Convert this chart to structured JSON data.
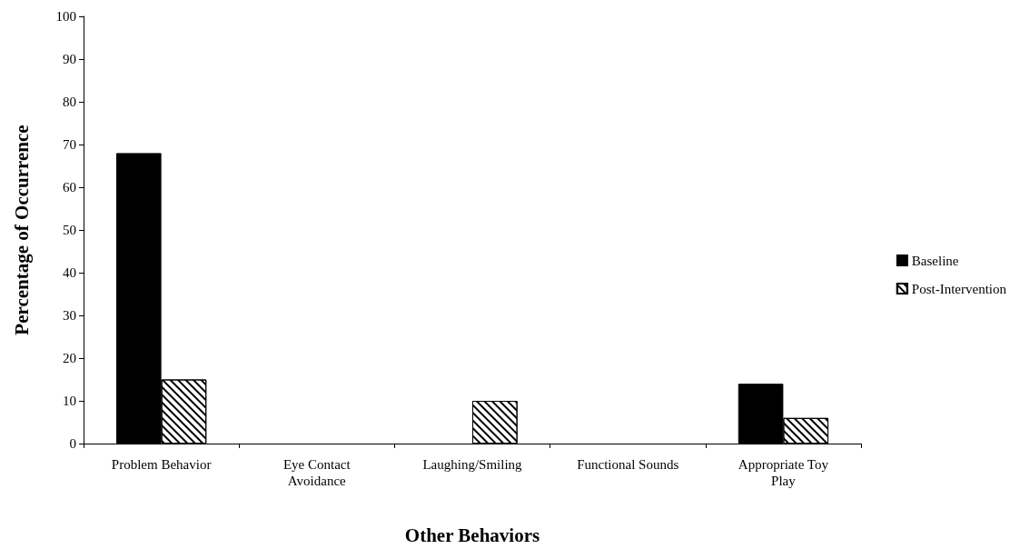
{
  "chart_data": {
    "type": "bar",
    "xlabel": "Other Behaviors",
    "ylabel": "Percentage of Occurrence",
    "categories": [
      "Problem Behavior",
      "Eye Contact Avoidance",
      "Laughing/Smiling",
      "Functional Sounds",
      "Appropriate Toy Play"
    ],
    "series": [
      {
        "name": "Baseline",
        "color": "#000000",
        "values": [
          68,
          0,
          0,
          0,
          14
        ]
      },
      {
        "name": "Post-Intervention",
        "color": "#ffffff",
        "values": [
          15,
          0,
          10,
          0,
          6
        ]
      }
    ],
    "ylim": [
      0,
      100
    ],
    "yticks": [
      0,
      10,
      20,
      30,
      40,
      50,
      60,
      70,
      80,
      90,
      100
    ],
    "grid": false,
    "legend": "right"
  }
}
